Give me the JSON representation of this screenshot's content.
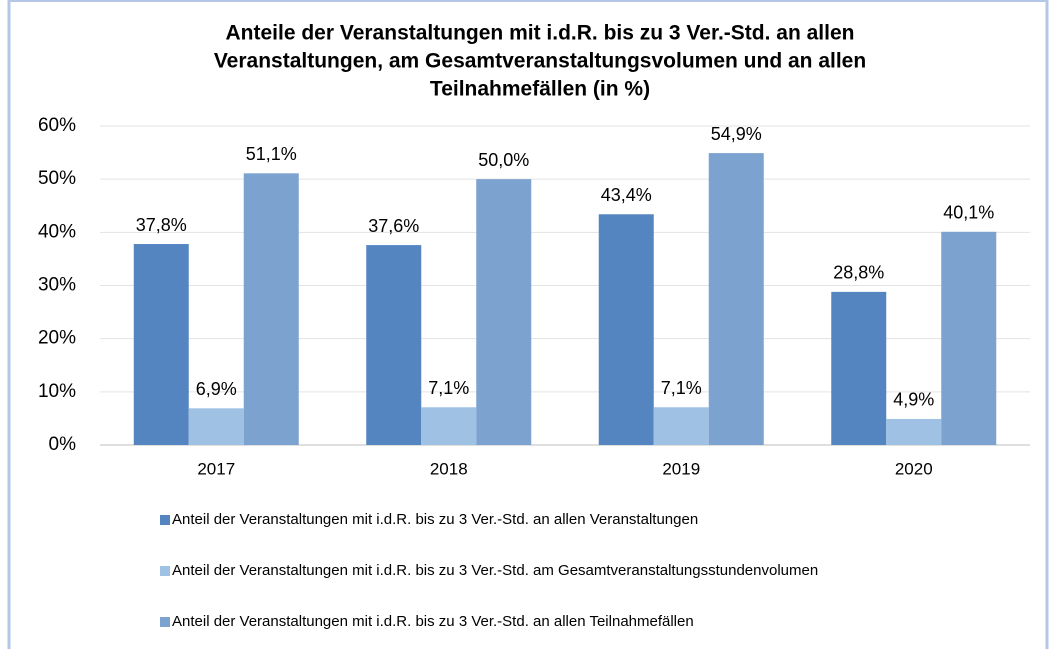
{
  "chart_data": {
    "type": "bar",
    "title": [
      "Anteile der Veranstaltungen mit i.d.R. bis zu 3 Ver.-Std. an allen",
      "Veranstaltungen, am Gesamtveranstaltungsvolumen und an allen",
      "Teilnahmefällen (in %)"
    ],
    "categories": [
      "2017",
      "2018",
      "2019",
      "2020"
    ],
    "series": [
      {
        "name": "Anteil der Veranstaltungen mit i.d.R. bis zu 3 Ver.-Std. an allen Veranstaltungen",
        "color": "#5585c1",
        "values": [
          37.8,
          37.6,
          43.4,
          28.8
        ],
        "value_labels": [
          "37,8%",
          "37,6%",
          "43,4%",
          "28,8%"
        ]
      },
      {
        "name": "Anteil der Veranstaltungen mit i.d.R. bis zu 3 Ver.-Std. am Gesamtveranstaltungsstundenvolumen",
        "color": "#9fc1e4",
        "values": [
          6.9,
          7.1,
          7.1,
          4.9
        ],
        "value_labels": [
          "6,9%",
          "7,1%",
          "7,1%",
          "4,9%"
        ]
      },
      {
        "name": "Anteil der Veranstaltungen mit i.d.R. bis zu 3 Ver.-Std. an allen Teilnahmefällen",
        "color": "#7ca2d0",
        "values": [
          51.1,
          50.0,
          54.9,
          40.1
        ],
        "value_labels": [
          "51,1%",
          "50,0%",
          "54,9%",
          "40,1%"
        ]
      }
    ],
    "ylim": [
      0,
      60
    ],
    "yticks": [
      {
        "value": 0,
        "label": "0%"
      },
      {
        "value": 10,
        "label": "10%"
      },
      {
        "value": 20,
        "label": "20%"
      },
      {
        "value": 30,
        "label": "30%"
      },
      {
        "value": 40,
        "label": "40%"
      },
      {
        "value": 50,
        "label": "50%"
      },
      {
        "value": 60,
        "label": "60%"
      }
    ],
    "grid": true
  }
}
